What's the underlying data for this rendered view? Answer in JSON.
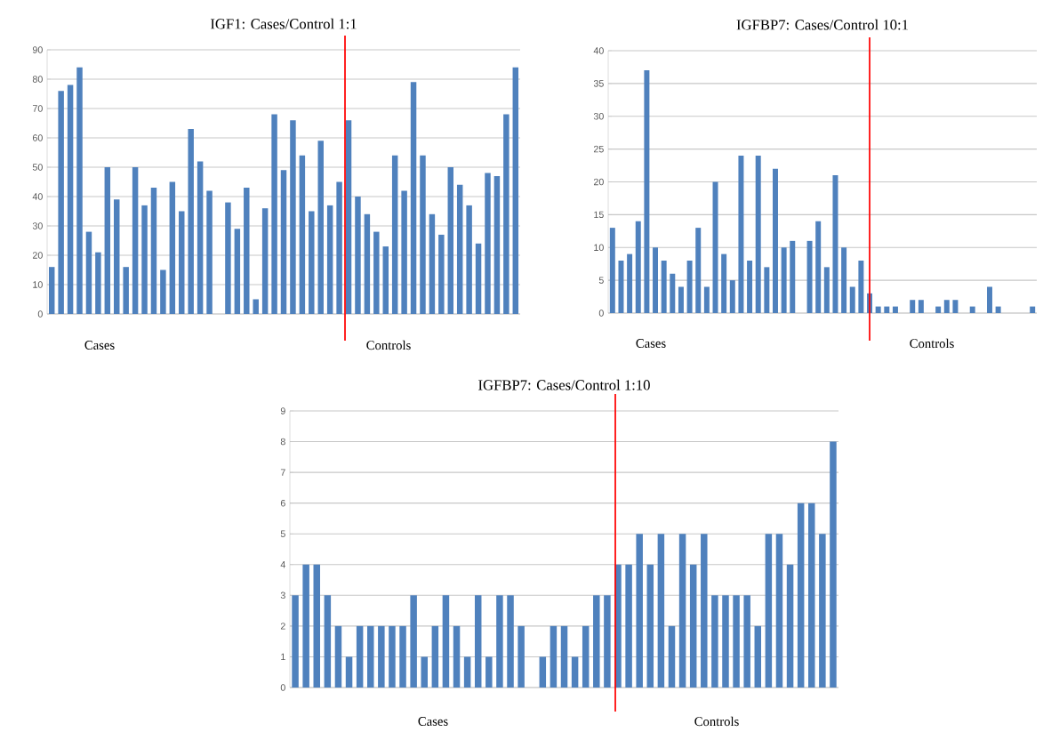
{
  "chart_data": [
    {
      "type": "bar",
      "title": "IGF1: Cases/Control 1:1",
      "categories": [
        null,
        null,
        null,
        null,
        null,
        null,
        null,
        null,
        null,
        null,
        null,
        null,
        null,
        null,
        null,
        null,
        null,
        null,
        null,
        null,
        null,
        null,
        null,
        null,
        null,
        null,
        null,
        null,
        null,
        null,
        null,
        null,
        null,
        null,
        null,
        null,
        null,
        null,
        null,
        null,
        null,
        null,
        null,
        null,
        null,
        null,
        null,
        null,
        null,
        null,
        null
      ],
      "values": [
        16,
        76,
        78,
        84,
        28,
        21,
        50,
        39,
        16,
        50,
        37,
        43,
        15,
        45,
        35,
        63,
        52,
        42,
        null,
        38,
        29,
        43,
        5,
        36,
        68,
        49,
        66,
        54,
        35,
        59,
        37,
        45,
        66,
        40,
        34,
        28,
        23,
        54,
        42,
        79,
        54,
        34,
        27,
        50,
        44,
        37,
        24,
        48,
        47,
        68,
        84
      ],
      "color": "#4f81bd",
      "ylim": [
        0,
        90
      ],
      "yticks": [
        0,
        10,
        20,
        30,
        40,
        50,
        60,
        70,
        80,
        90
      ],
      "grid": "y",
      "tick_labels": "y",
      "annotations": [
        "Cases",
        "Controls"
      ]
    },
    {
      "type": "bar",
      "title": "IGFBP7: Cases/Control 10:1",
      "categories": [
        null,
        null,
        null,
        null,
        null,
        null,
        null,
        null,
        null,
        null,
        null,
        null,
        null,
        null,
        null,
        null,
        null,
        null,
        null,
        null,
        null,
        null,
        null,
        null,
        null,
        null,
        null,
        null,
        null,
        null,
        null,
        null,
        null,
        null,
        null,
        null,
        null,
        null,
        null,
        null,
        null,
        null,
        null,
        null,
        null,
        null,
        null,
        null,
        null,
        null
      ],
      "values": [
        13,
        8,
        9,
        14,
        37,
        10,
        8,
        6,
        4,
        8,
        13,
        4,
        20,
        9,
        5,
        24,
        8,
        24,
        7,
        22,
        10,
        11,
        null,
        11,
        14,
        7,
        21,
        10,
        4,
        8,
        3,
        1,
        1,
        1,
        null,
        2,
        2,
        null,
        1,
        2,
        2,
        null,
        1,
        null,
        4,
        1,
        null,
        null,
        null,
        1
      ],
      "color": "#4f81bd",
      "ylim": [
        0,
        40
      ],
      "yticks": [
        0,
        5,
        10,
        15,
        20,
        25,
        30,
        35,
        40
      ],
      "grid": "y",
      "tick_labels": "y",
      "annotations": [
        "Cases",
        "Controls"
      ]
    },
    {
      "type": "bar",
      "title": "IGFBP7: Cases/Control 1:10",
      "categories": [
        null,
        null,
        null,
        null,
        null,
        null,
        null,
        null,
        null,
        null,
        null,
        null,
        null,
        null,
        null,
        null,
        null,
        null,
        null,
        null,
        null,
        null,
        null,
        null,
        null,
        null,
        null,
        null,
        null,
        null,
        null,
        null,
        null,
        null,
        null,
        null,
        null,
        null,
        null,
        null,
        null,
        null,
        null,
        null,
        null,
        null,
        null,
        null,
        null,
        null,
        null
      ],
      "values": [
        3,
        4,
        4,
        3,
        2,
        1,
        2,
        2,
        2,
        2,
        2,
        3,
        1,
        2,
        3,
        2,
        1,
        3,
        1,
        3,
        3,
        2,
        null,
        1,
        2,
        2,
        1,
        2,
        3,
        3,
        4,
        4,
        5,
        4,
        5,
        2,
        5,
        4,
        5,
        3,
        3,
        3,
        3,
        2,
        5,
        5,
        4,
        6,
        6,
        5,
        8
      ],
      "color": "#4f81bd",
      "ylim": [
        0,
        9
      ],
      "yticks": [
        0,
        1,
        2,
        3,
        4,
        5,
        6,
        7,
        8,
        9
      ],
      "grid": "y",
      "tick_labels": "y",
      "annotations": [
        "Cases",
        "Controls"
      ]
    }
  ]
}
